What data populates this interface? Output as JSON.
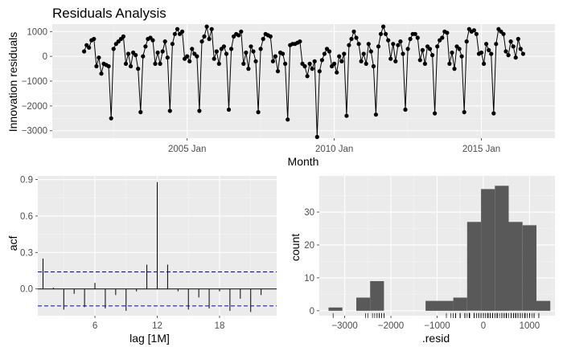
{
  "title": "Residuals Analysis",
  "colors": {
    "panel_bg": "#ebebeb",
    "grid_major": "#ffffff",
    "grid_minor": "#f4f4f4",
    "line": "#000000",
    "bar_fill": "#595959",
    "ci_line": "#0000cc",
    "rug": "#000000"
  },
  "chart_data": [
    {
      "type": "line",
      "id": "time-series",
      "xlabel": "Month",
      "ylabel": "Innovation residuals",
      "x_ticks": [
        "2005 Jan",
        "2010 Jan",
        "2015 Jan"
      ],
      "y_ticks": [
        1000,
        0,
        -1000,
        -2000,
        -3000
      ],
      "xlim": [
        "2000 Jun",
        "2017 Jul"
      ],
      "ylim": [
        -3300,
        1300
      ],
      "grid": true,
      "x_start": "2001 Jul",
      "x_freq": "monthly",
      "values": [
        200,
        450,
        350,
        650,
        700,
        -400,
        -50,
        -700,
        -300,
        -350,
        -400,
        -2500,
        300,
        500,
        600,
        700,
        800,
        -300,
        100,
        -400,
        150,
        50,
        -500,
        -2250,
        0,
        400,
        700,
        750,
        650,
        -300,
        150,
        -300,
        200,
        600,
        -50,
        -2200,
        500,
        900,
        1100,
        900,
        1000,
        -100,
        0,
        -200,
        300,
        100,
        0,
        -2200,
        600,
        800,
        1200,
        700,
        1100,
        -100,
        200,
        -300,
        300,
        400,
        100,
        -2150,
        300,
        800,
        900,
        850,
        1000,
        -300,
        150,
        -500,
        400,
        200,
        -200,
        -2250,
        300,
        700,
        900,
        850,
        800,
        -200,
        0,
        -600,
        150,
        100,
        -300,
        -2550,
        450,
        500,
        500,
        550,
        600,
        -300,
        -400,
        -800,
        -300,
        -500,
        -200,
        -3250,
        -600,
        -150,
        100,
        300,
        200,
        -400,
        -300,
        -650,
        0,
        -200,
        100,
        -2400,
        450,
        700,
        1000,
        750,
        500,
        -200,
        100,
        -300,
        500,
        200,
        -400,
        -2350,
        400,
        900,
        1200,
        900,
        650,
        -100,
        500,
        -200,
        450,
        600,
        100,
        -2150,
        300,
        700,
        900,
        900,
        750,
        -150,
        250,
        -300,
        400,
        300,
        50,
        -2300,
        400,
        650,
        750,
        1000,
        950,
        -300,
        150,
        -500,
        400,
        300,
        0,
        -2250,
        600,
        1100,
        1000,
        1050,
        900,
        100,
        150,
        -300,
        500,
        250,
        100,
        -2300,
        500,
        1100,
        1000,
        900,
        200,
        50,
        600,
        400,
        -50,
        700,
        300,
        100
      ]
    },
    {
      "type": "bar",
      "id": "acf",
      "xlabel": "lag [1M]",
      "ylabel": "acf",
      "x_ticks": [
        6,
        12,
        18
      ],
      "y_ticks": [
        0.9,
        0.6,
        0.3,
        0.0
      ],
      "xlim": [
        0.5,
        23.5
      ],
      "ylim": [
        -0.22,
        0.93
      ],
      "grid": true,
      "lags": [
        1,
        2,
        3,
        4,
        5,
        6,
        7,
        8,
        9,
        10,
        11,
        12,
        13,
        14,
        15,
        16,
        17,
        18,
        19,
        20,
        21,
        22,
        23
      ],
      "values": [
        0.25,
        0.01,
        -0.17,
        -0.04,
        -0.15,
        0.05,
        -0.16,
        -0.05,
        -0.18,
        -0.02,
        0.2,
        0.88,
        0.2,
        -0.02,
        -0.17,
        -0.07,
        -0.16,
        -0.02,
        -0.18,
        -0.08,
        -0.19,
        -0.05,
        0.0
      ],
      "ci": [
        0.14,
        -0.14
      ]
    },
    {
      "type": "bar",
      "id": "histogram",
      "xlabel": ".resid",
      "ylabel": "count",
      "x_ticks": [
        -3000,
        -2000,
        -1000,
        0,
        1000
      ],
      "y_ticks": [
        30,
        20,
        10,
        0
      ],
      "xlim": [
        -3550,
        1550
      ],
      "ylim": [
        -1.5,
        41
      ],
      "grid": true,
      "bins": [
        {
          "from": -3350,
          "to": -3050,
          "count": 1
        },
        {
          "from": -3050,
          "to": -2750,
          "count": 0
        },
        {
          "from": -2750,
          "to": -2450,
          "count": 4
        },
        {
          "from": -2450,
          "to": -2150,
          "count": 9
        },
        {
          "from": -2150,
          "to": -1850,
          "count": 0
        },
        {
          "from": -1850,
          "to": -1550,
          "count": 0
        },
        {
          "from": -1550,
          "to": -1250,
          "count": 0
        },
        {
          "from": -1250,
          "to": -650,
          "count": 3
        },
        {
          "from": -650,
          "to": -350,
          "count": 4
        },
        {
          "from": -350,
          "to": -50,
          "count": 27
        },
        {
          "from": -50,
          "to": 250,
          "count": 37
        },
        {
          "from": 250,
          "to": 550,
          "count": 38
        },
        {
          "from": 550,
          "to": 850,
          "count": 27
        },
        {
          "from": 850,
          "to": 1150,
          "count": 26
        },
        {
          "from": 1150,
          "to": 1450,
          "count": 3
        }
      ]
    }
  ]
}
